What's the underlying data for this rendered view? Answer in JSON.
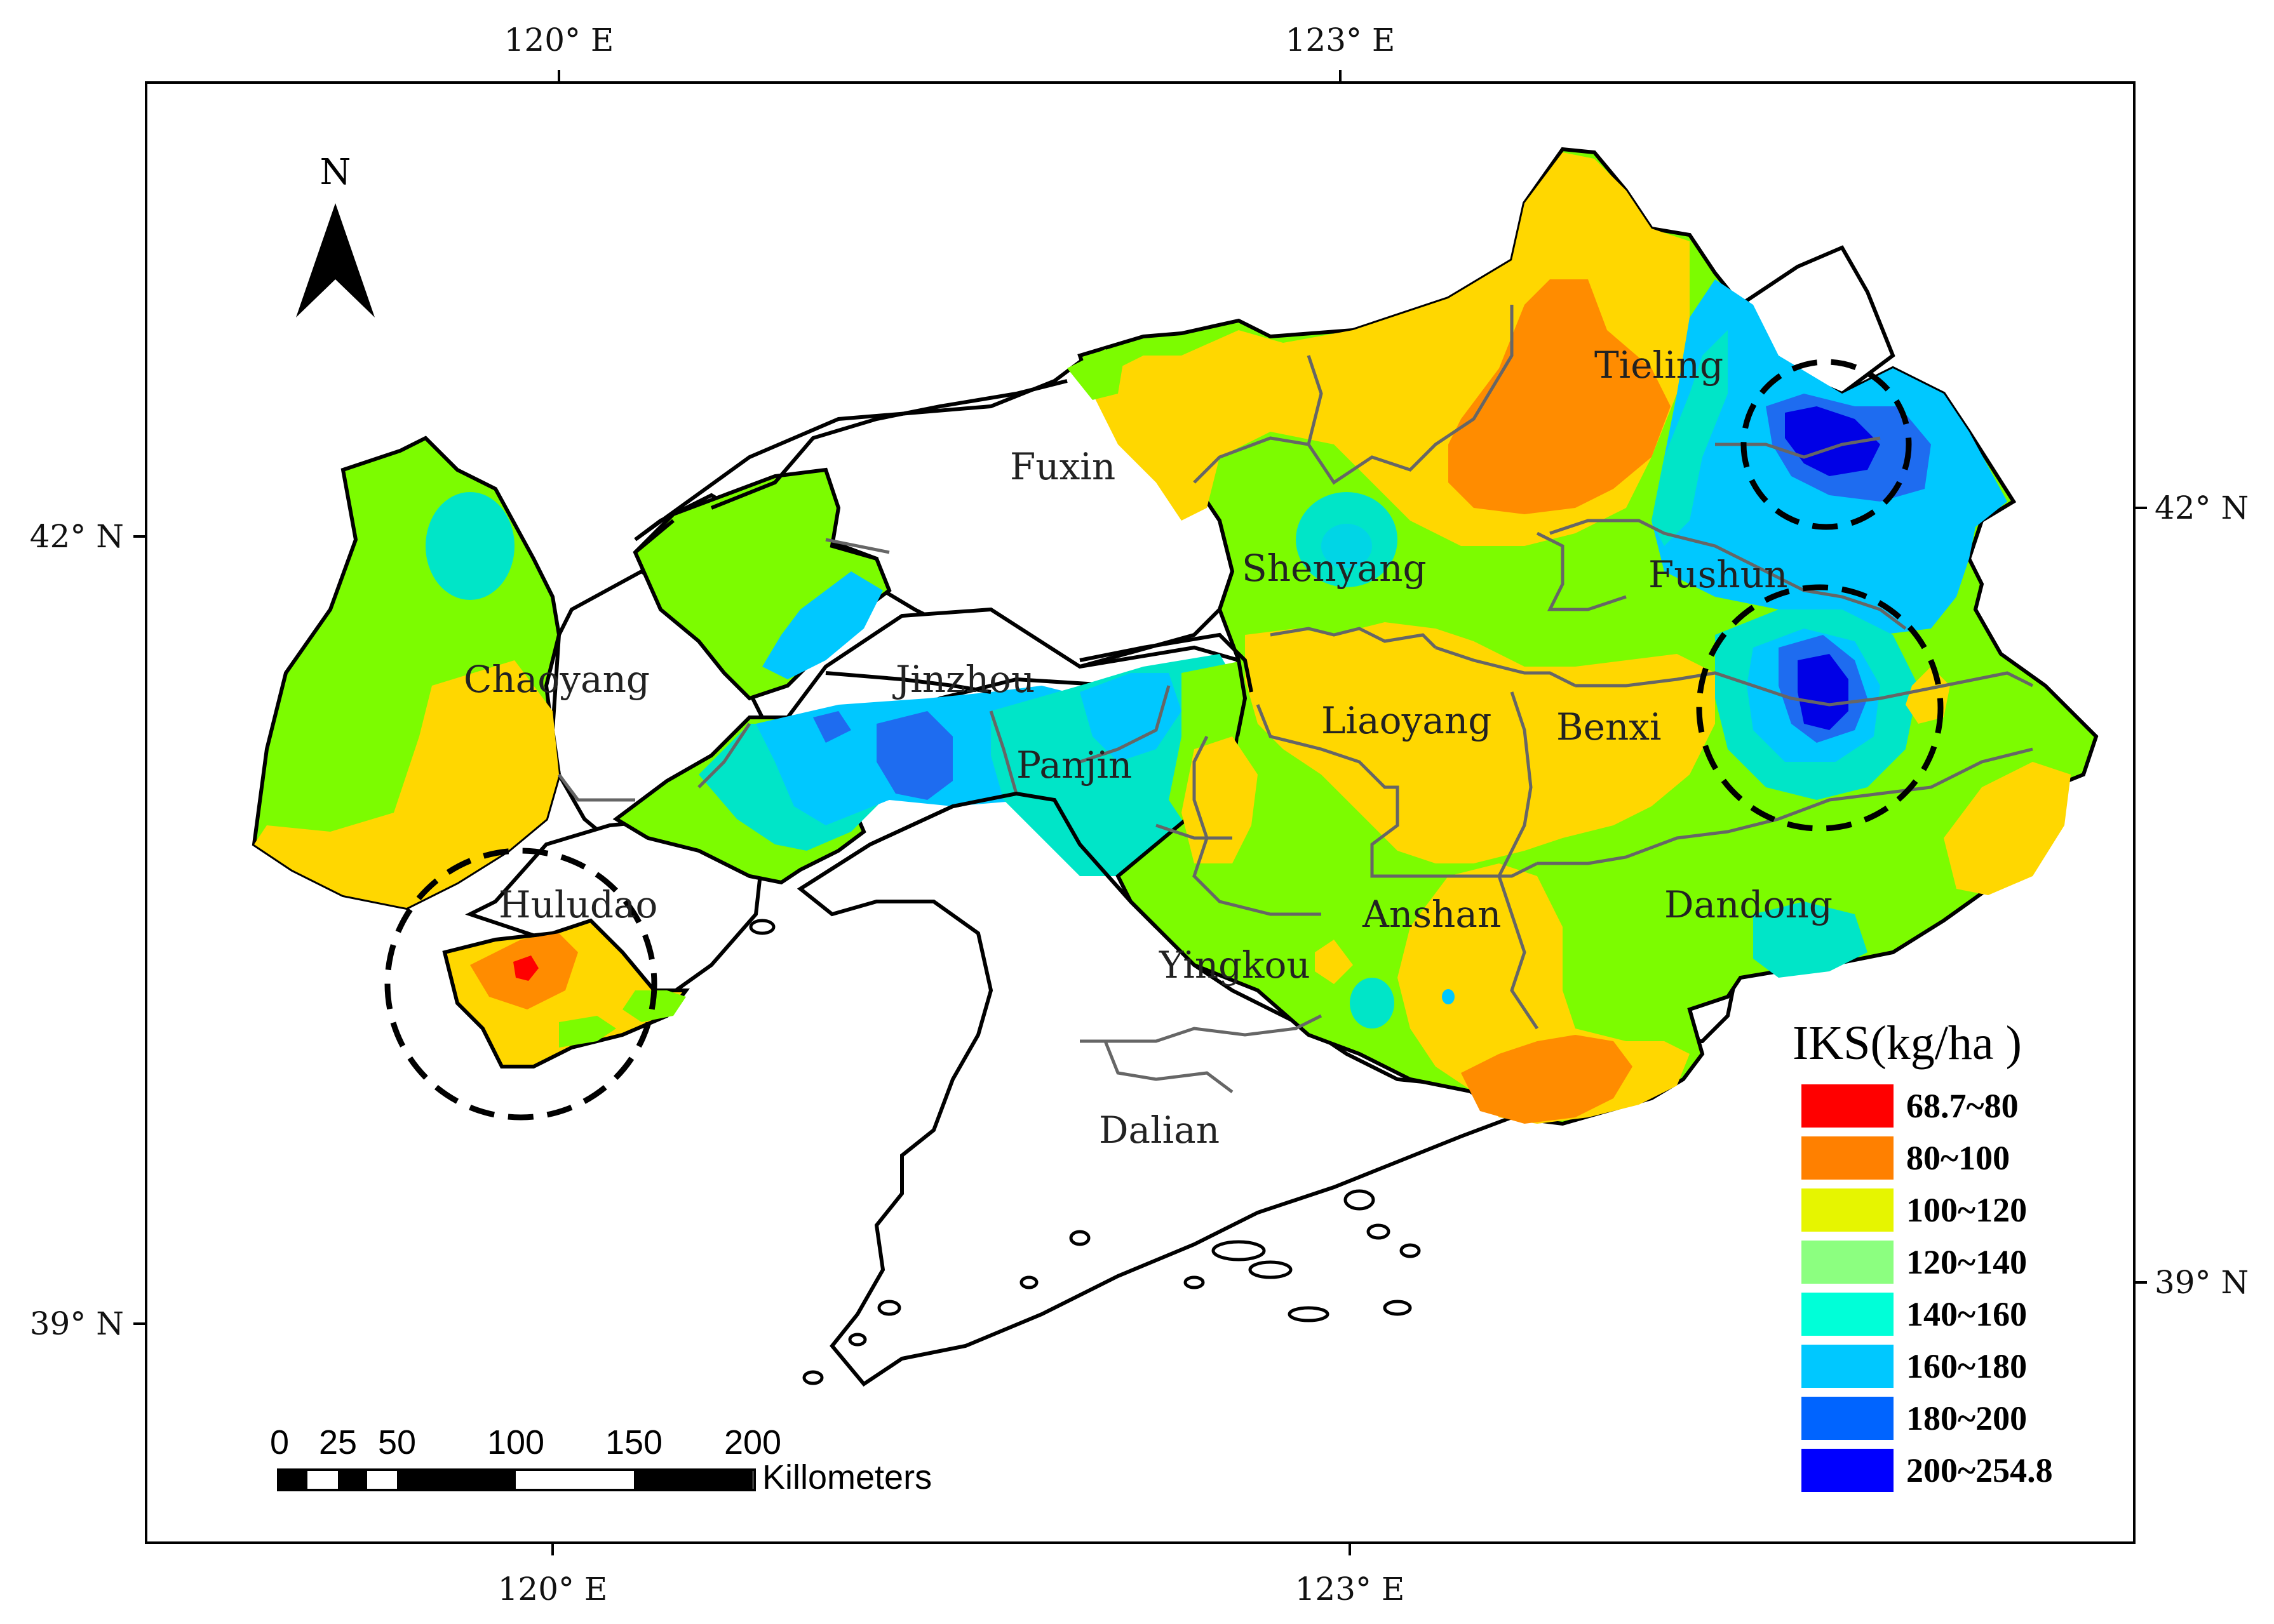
{
  "axes": {
    "lon_top": [
      "120° E",
      "123° E"
    ],
    "lon_bottom": [
      "120° E",
      "123° E"
    ],
    "lat_left": [
      "42° N",
      "39° N"
    ],
    "lat_right": [
      "42° N",
      "39° N"
    ]
  },
  "north_arrow": {
    "label": "N"
  },
  "cities": [
    "Tieling",
    "Fuxin",
    "Shenyang",
    "Fushun",
    "Chaoyang",
    "Jinzhou",
    "Liaoyang",
    "Benxi",
    "Panjin",
    "Huludao",
    "Anshan",
    "Dandong",
    "Yingkou",
    "Dalian"
  ],
  "legend": {
    "title": "IKS(kg/ha )",
    "items": [
      {
        "label": "68.7~80",
        "color": "#ff0000"
      },
      {
        "label": "80~100",
        "color": "#ff8000"
      },
      {
        "label": "100~120",
        "color": "#e6f500"
      },
      {
        "label": "120~140",
        "color": "#8cff80"
      },
      {
        "label": "140~160",
        "color": "#00ffd8"
      },
      {
        "label": "160~180",
        "color": "#00c8ff"
      },
      {
        "label": "180~200",
        "color": "#0064ff"
      },
      {
        "label": "200~254.8",
        "color": "#0000ff"
      }
    ]
  },
  "scale_bar": {
    "ticks": [
      "0",
      "25",
      "50",
      "100",
      "150",
      "200"
    ],
    "unit": "Killometers"
  },
  "fill_colors": {
    "yellow": "#ffd700",
    "green": "#7cfc00",
    "orange": "#ff8c00",
    "cyan": "#00e5c8",
    "lightblue": "#00c8ff",
    "blue": "#1e6cf0",
    "deepblue": "#0000e6",
    "red": "#ff0000"
  }
}
